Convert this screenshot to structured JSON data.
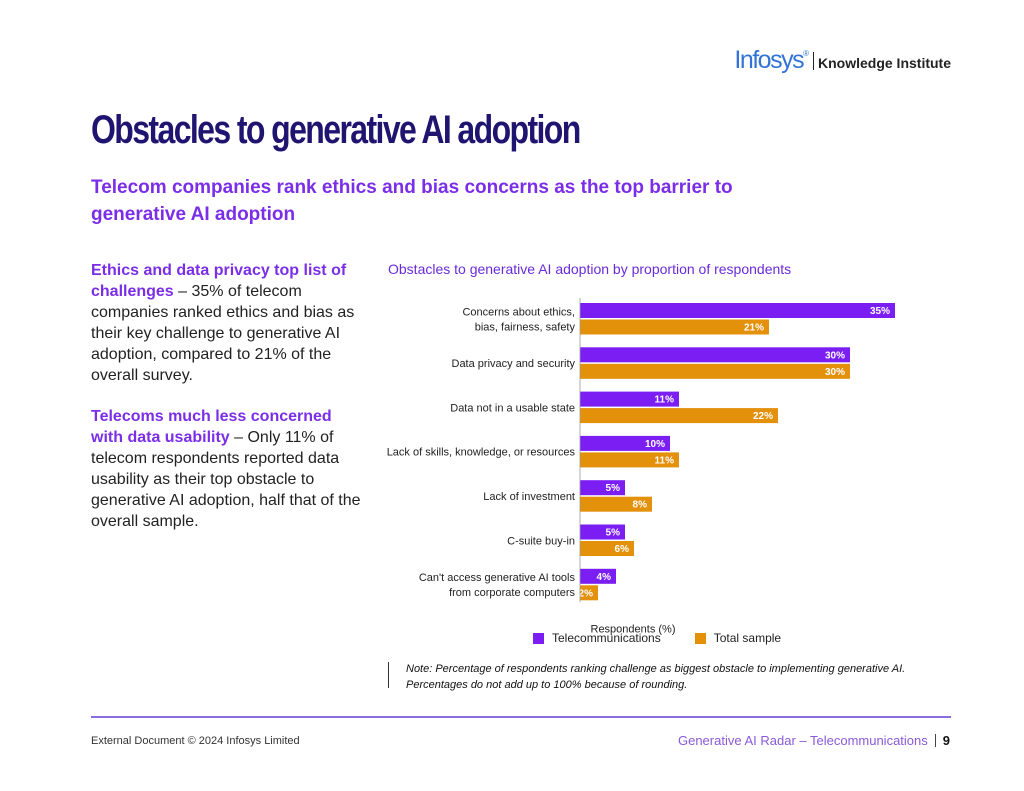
{
  "brand": {
    "name": "Infosys",
    "reg": "®",
    "sub": "Knowledge Institute"
  },
  "page": {
    "title": "Obstacles to generative AI adoption",
    "subtitle": "Telecom companies rank ethics and bias concerns as the top barrier to generative AI adoption"
  },
  "left": {
    "p1_highlight": "Ethics and data privacy top list of challenges",
    "p1_text": " – 35% of telecom companies ranked ethics and bias as their key challenge to generative AI adoption, compared to 21% of the overall survey.",
    "p2_highlight": "Telecoms much less concerned with data usability",
    "p2_text": " – Only 11% of telecom respondents reported data usability as their top obstacle to generative AI adoption, half that of the overall sample."
  },
  "chart_data": {
    "type": "bar",
    "orientation": "horizontal",
    "title": "Obstacles to generative AI adoption by proportion of respondents",
    "xlabel": "Respondents (%)",
    "ylabel": "",
    "xlim": [
      0,
      40
    ],
    "categories": [
      [
        "Concerns about ethics,",
        "bias, fairness, safety"
      ],
      [
        "Data privacy and security"
      ],
      [
        "Data not in a usable state"
      ],
      [
        "Lack of skills, knowledge, or resources"
      ],
      [
        "Lack of investment"
      ],
      [
        "C-suite buy-in"
      ],
      [
        "Can't access generative AI tools",
        "from corporate computers"
      ]
    ],
    "series": [
      {
        "name": "Telecommunications",
        "color": "#7a1ef3",
        "values": [
          35,
          30,
          11,
          10,
          5,
          5,
          4
        ],
        "labels": [
          "35%",
          "30%",
          "11%",
          "10%",
          "5%",
          "5%",
          "4%"
        ]
      },
      {
        "name": "Total sample",
        "color": "#e3900a",
        "values": [
          21,
          30,
          22,
          11,
          8,
          6,
          2
        ],
        "labels": [
          "21%",
          "30%",
          "22%",
          "11%",
          "8%",
          "6%",
          "2%"
        ]
      }
    ]
  },
  "note": {
    "line1": "Note: Percentage of respondents ranking challenge as biggest obstacle to implementing generative AI.",
    "line2": "Percentages do not add up to 100% because of rounding."
  },
  "footer": {
    "left": "External Document © 2024 Infosys Limited",
    "right": "Generative AI Radar – Telecommunications",
    "page": "9"
  }
}
